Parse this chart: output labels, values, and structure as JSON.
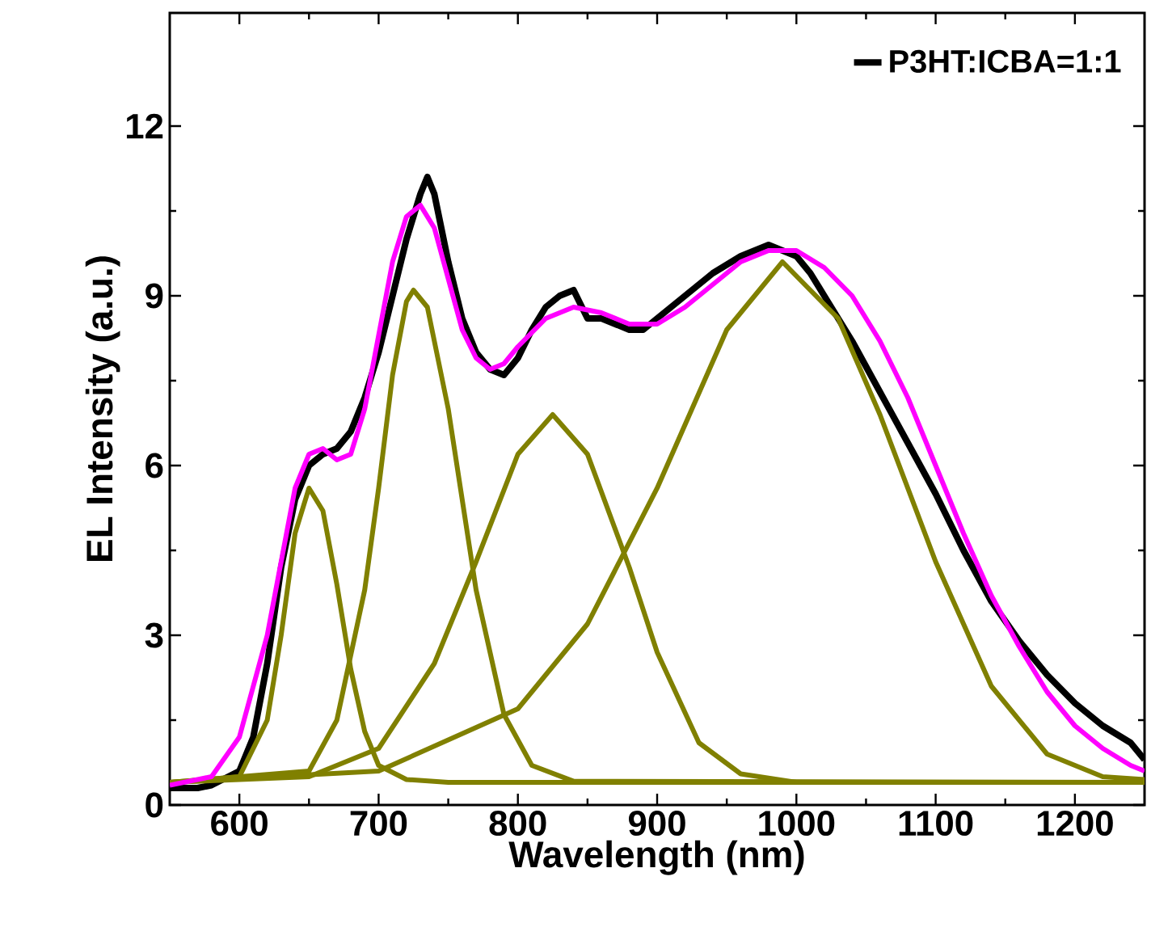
{
  "chart_data": {
    "type": "line",
    "xlabel": "Wavelength (nm)",
    "ylabel": "EL Intensity (a.u.)",
    "xlim": [
      550,
      1250
    ],
    "ylim": [
      0,
      14
    ],
    "xticks": [
      600,
      700,
      800,
      900,
      1000,
      1100,
      1200
    ],
    "yticks": [
      0,
      3,
      6,
      9,
      12
    ],
    "legend": "top right",
    "series": [
      {
        "name": "P3HT:ICBA=1:1",
        "color": "#000000",
        "x": [
          550,
          570,
          580,
          600,
          610,
          620,
          630,
          640,
          650,
          660,
          670,
          680,
          690,
          700,
          710,
          720,
          730,
          735,
          740,
          750,
          760,
          770,
          780,
          790,
          800,
          810,
          820,
          830,
          840,
          850,
          860,
          870,
          880,
          890,
          900,
          910,
          920,
          940,
          960,
          980,
          990,
          1000,
          1010,
          1020,
          1040,
          1060,
          1080,
          1100,
          1120,
          1140,
          1160,
          1180,
          1200,
          1220,
          1240,
          1250
        ],
        "values": [
          0.3,
          0.3,
          0.35,
          0.6,
          1.2,
          2.5,
          4.2,
          5.4,
          6.0,
          6.2,
          6.3,
          6.6,
          7.2,
          8.0,
          9.0,
          10.0,
          10.8,
          11.1,
          10.8,
          9.6,
          8.6,
          8.0,
          7.7,
          7.6,
          7.9,
          8.4,
          8.8,
          9.0,
          9.1,
          8.6,
          8.6,
          8.5,
          8.4,
          8.4,
          8.6,
          8.8,
          9.0,
          9.4,
          9.7,
          9.9,
          9.8,
          9.7,
          9.4,
          9.0,
          8.2,
          7.3,
          6.4,
          5.5,
          4.5,
          3.6,
          2.9,
          2.3,
          1.8,
          1.4,
          1.1,
          0.8
        ]
      },
      {
        "color": "#808000",
        "x": [
          550,
          600,
          620,
          630,
          640,
          650,
          660,
          670,
          680,
          690,
          700,
          720,
          750,
          1250
        ],
        "values": [
          0.4,
          0.5,
          1.5,
          3.0,
          4.8,
          5.6,
          5.2,
          3.9,
          2.4,
          1.3,
          0.7,
          0.45,
          0.4,
          0.4
        ]
      },
      {
        "color": "#808000",
        "x": [
          550,
          650,
          670,
          690,
          700,
          710,
          720,
          725,
          735,
          750,
          770,
          790,
          810,
          840,
          1250
        ],
        "values": [
          0.4,
          0.6,
          1.5,
          3.8,
          5.6,
          7.6,
          8.9,
          9.1,
          8.8,
          7.0,
          3.8,
          1.6,
          0.7,
          0.42,
          0.4
        ]
      },
      {
        "color": "#808000",
        "x": [
          550,
          650,
          700,
          740,
          770,
          800,
          825,
          850,
          880,
          900,
          930,
          960,
          1000,
          1250
        ],
        "values": [
          0.4,
          0.5,
          1.0,
          2.5,
          4.3,
          6.2,
          6.9,
          6.2,
          4.2,
          2.7,
          1.1,
          0.55,
          0.4,
          0.4
        ]
      },
      {
        "color": "#808000",
        "x": [
          550,
          700,
          800,
          850,
          900,
          950,
          990,
          1030,
          1060,
          1100,
          1140,
          1180,
          1220,
          1250
        ],
        "values": [
          0.4,
          0.6,
          1.7,
          3.2,
          5.6,
          8.4,
          9.6,
          8.6,
          6.9,
          4.3,
          2.1,
          0.9,
          0.5,
          0.45
        ]
      },
      {
        "color": "#ff00ff",
        "x": [
          550,
          580,
          600,
          620,
          640,
          650,
          660,
          670,
          680,
          690,
          700,
          710,
          720,
          730,
          740,
          750,
          760,
          770,
          780,
          790,
          800,
          820,
          840,
          860,
          880,
          900,
          920,
          940,
          960,
          980,
          1000,
          1020,
          1040,
          1060,
          1080,
          1100,
          1120,
          1140,
          1160,
          1180,
          1200,
          1220,
          1240,
          1250
        ],
        "values": [
          0.35,
          0.5,
          1.2,
          3.0,
          5.6,
          6.2,
          6.3,
          6.1,
          6.2,
          7.0,
          8.3,
          9.6,
          10.4,
          10.6,
          10.2,
          9.3,
          8.4,
          7.9,
          7.7,
          7.8,
          8.1,
          8.6,
          8.8,
          8.7,
          8.5,
          8.5,
          8.8,
          9.2,
          9.6,
          9.8,
          9.8,
          9.5,
          9.0,
          8.2,
          7.2,
          6.0,
          4.8,
          3.7,
          2.8,
          2.0,
          1.4,
          1.0,
          0.7,
          0.6
        ]
      }
    ]
  }
}
